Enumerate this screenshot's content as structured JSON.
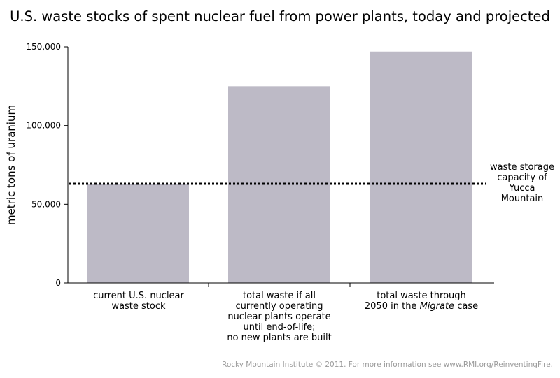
{
  "chart_data": {
    "type": "bar",
    "title": "U.S. waste stocks of spent nuclear fuel from power plants, today and projected",
    "ylabel": "metric tons of uranium",
    "xlabel": "",
    "ylim": [
      0,
      150000
    ],
    "yticks": [
      0,
      50000,
      100000,
      150000
    ],
    "ytick_labels": [
      "0",
      "50,000",
      "100,000",
      "150,000"
    ],
    "categories": [
      "current U.S. nuclear waste stock",
      "total waste if all currently operating nuclear plants operate until end-of-life; no new plants are built",
      "total waste through 2050 in the Migrate case"
    ],
    "category_lines": [
      [
        "current U.S. nuclear",
        "waste stock"
      ],
      [
        "total waste if all",
        "currently operating",
        "nuclear plants operate",
        "until end-of-life;",
        "no new plants are built"
      ],
      [
        "total waste through",
        "2050 in the |Migrate| case"
      ]
    ],
    "values": [
      63000,
      125000,
      147000
    ],
    "reference_line": {
      "value": 63000,
      "style": "dotted",
      "label": "waste storage capacity of Yucca Mountain",
      "label_lines": [
        "waste storage",
        "capacity of",
        "Yucca",
        "Mountain"
      ]
    },
    "grid": false,
    "legend": "none",
    "colors": {
      "bar": "#bdbac6",
      "axis": "#000000",
      "reference": "#000000"
    }
  },
  "footer": {
    "credit": "Rocky Mountain Institute © 2011. For more information see www.RMI.org/ReinventingFire."
  }
}
